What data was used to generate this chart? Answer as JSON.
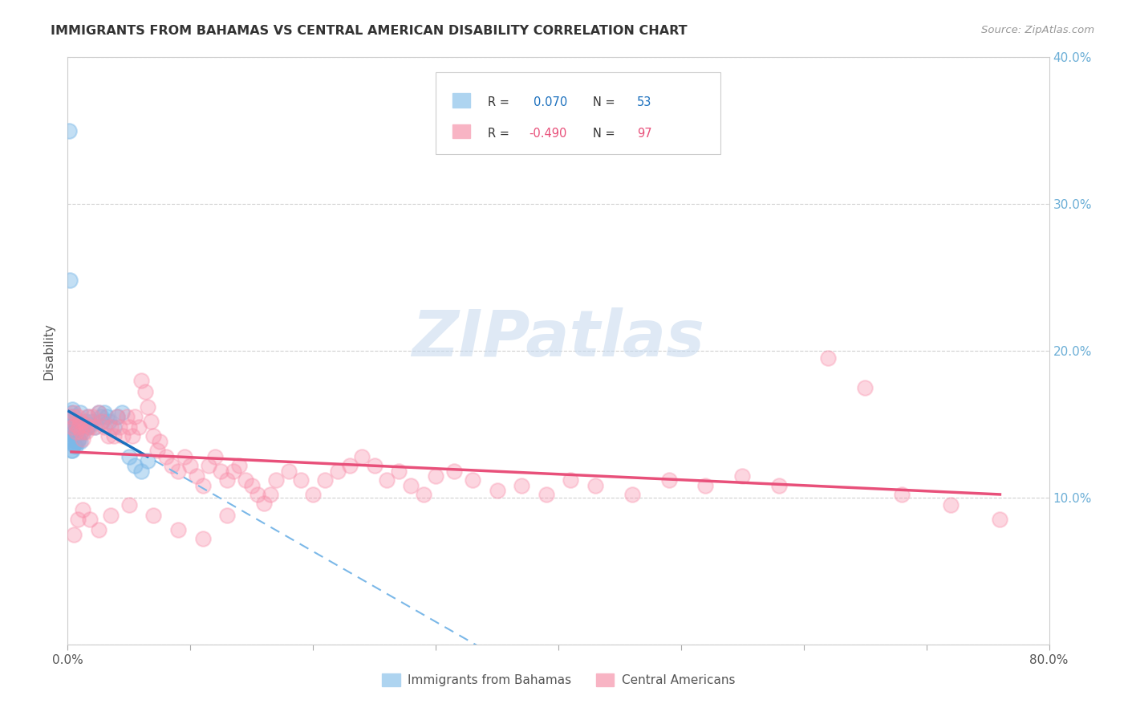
{
  "title": "IMMIGRANTS FROM BAHAMAS VS CENTRAL AMERICAN DISABILITY CORRELATION CHART",
  "source": "Source: ZipAtlas.com",
  "ylabel": "Disability",
  "xlim": [
    0.0,
    0.8
  ],
  "ylim": [
    0.0,
    0.4
  ],
  "xtick_positions": [
    0.0,
    0.1,
    0.2,
    0.3,
    0.4,
    0.5,
    0.6,
    0.7,
    0.8
  ],
  "xticklabels": [
    "0.0%",
    "",
    "",
    "",
    "",
    "",
    "",
    "",
    "80.0%"
  ],
  "ytick_positions": [
    0.0,
    0.1,
    0.2,
    0.3,
    0.4
  ],
  "yticklabels_right": [
    "",
    "10.0%",
    "20.0%",
    "30.0%",
    "40.0%"
  ],
  "blue_R": 0.07,
  "blue_N": 53,
  "pink_R": -0.49,
  "pink_N": 97,
  "blue_color": "#7bb8e8",
  "pink_color": "#f98ca8",
  "legend_labels": [
    "Immigrants from Bahamas",
    "Central Americans"
  ],
  "watermark": "ZIPatlas",
  "background_color": "#ffffff",
  "grid_color": "#d0d0d0",
  "blue_scatter_x": [
    0.001,
    0.002,
    0.002,
    0.002,
    0.003,
    0.003,
    0.003,
    0.003,
    0.003,
    0.004,
    0.004,
    0.004,
    0.004,
    0.005,
    0.005,
    0.005,
    0.005,
    0.006,
    0.006,
    0.006,
    0.007,
    0.007,
    0.007,
    0.008,
    0.008,
    0.009,
    0.009,
    0.01,
    0.01,
    0.01,
    0.011,
    0.012,
    0.013,
    0.015,
    0.016,
    0.017,
    0.018,
    0.02,
    0.022,
    0.025,
    0.027,
    0.028,
    0.03,
    0.032,
    0.034,
    0.038,
    0.04,
    0.044,
    0.05,
    0.055,
    0.06,
    0.065,
    0.002
  ],
  "blue_scatter_y": [
    0.35,
    0.155,
    0.148,
    0.14,
    0.158,
    0.152,
    0.145,
    0.138,
    0.132,
    0.16,
    0.148,
    0.14,
    0.132,
    0.155,
    0.148,
    0.142,
    0.136,
    0.15,
    0.142,
    0.135,
    0.152,
    0.145,
    0.138,
    0.148,
    0.138,
    0.15,
    0.14,
    0.158,
    0.148,
    0.138,
    0.145,
    0.15,
    0.145,
    0.152,
    0.148,
    0.155,
    0.15,
    0.152,
    0.148,
    0.158,
    0.155,
    0.152,
    0.158,
    0.155,
    0.152,
    0.148,
    0.155,
    0.158,
    0.128,
    0.122,
    0.118,
    0.125,
    0.248
  ],
  "pink_scatter_x": [
    0.003,
    0.004,
    0.005,
    0.006,
    0.007,
    0.008,
    0.009,
    0.01,
    0.011,
    0.012,
    0.014,
    0.015,
    0.016,
    0.018,
    0.02,
    0.022,
    0.025,
    0.028,
    0.03,
    0.033,
    0.035,
    0.038,
    0.04,
    0.042,
    0.045,
    0.048,
    0.05,
    0.053,
    0.055,
    0.058,
    0.06,
    0.063,
    0.065,
    0.068,
    0.07,
    0.073,
    0.075,
    0.08,
    0.085,
    0.09,
    0.095,
    0.1,
    0.105,
    0.11,
    0.115,
    0.12,
    0.125,
    0.13,
    0.135,
    0.14,
    0.145,
    0.15,
    0.155,
    0.16,
    0.165,
    0.17,
    0.18,
    0.19,
    0.2,
    0.21,
    0.22,
    0.23,
    0.24,
    0.25,
    0.26,
    0.27,
    0.28,
    0.29,
    0.3,
    0.315,
    0.33,
    0.35,
    0.37,
    0.39,
    0.41,
    0.43,
    0.46,
    0.49,
    0.52,
    0.55,
    0.58,
    0.62,
    0.65,
    0.68,
    0.72,
    0.76,
    0.005,
    0.008,
    0.012,
    0.018,
    0.025,
    0.035,
    0.05,
    0.07,
    0.09,
    0.11,
    0.13
  ],
  "pink_scatter_y": [
    0.155,
    0.148,
    0.158,
    0.15,
    0.145,
    0.155,
    0.148,
    0.152,
    0.145,
    0.14,
    0.15,
    0.145,
    0.155,
    0.148,
    0.155,
    0.148,
    0.158,
    0.152,
    0.148,
    0.142,
    0.148,
    0.142,
    0.155,
    0.148,
    0.142,
    0.155,
    0.148,
    0.142,
    0.155,
    0.148,
    0.18,
    0.172,
    0.162,
    0.152,
    0.142,
    0.132,
    0.138,
    0.128,
    0.122,
    0.118,
    0.128,
    0.122,
    0.115,
    0.108,
    0.122,
    0.128,
    0.118,
    0.112,
    0.118,
    0.122,
    0.112,
    0.108,
    0.102,
    0.096,
    0.102,
    0.112,
    0.118,
    0.112,
    0.102,
    0.112,
    0.118,
    0.122,
    0.128,
    0.122,
    0.112,
    0.118,
    0.108,
    0.102,
    0.115,
    0.118,
    0.112,
    0.105,
    0.108,
    0.102,
    0.112,
    0.108,
    0.102,
    0.112,
    0.108,
    0.115,
    0.108,
    0.195,
    0.175,
    0.102,
    0.095,
    0.085,
    0.075,
    0.085,
    0.092,
    0.085,
    0.078,
    0.088,
    0.095,
    0.088,
    0.078,
    0.072,
    0.088
  ]
}
